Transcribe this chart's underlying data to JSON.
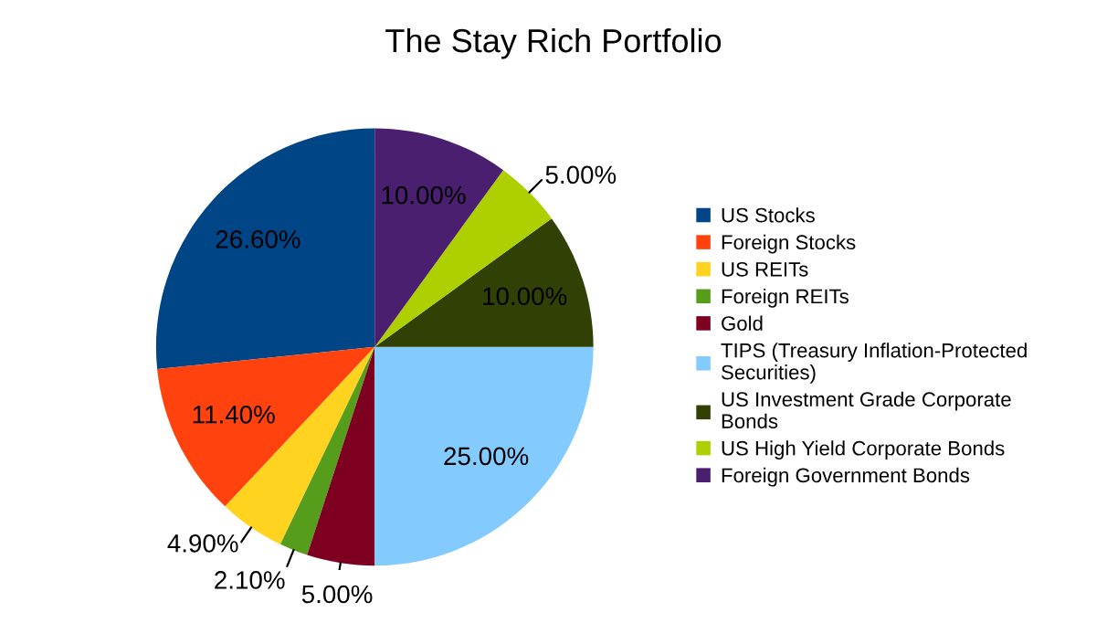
{
  "chart_data": {
    "type": "pie",
    "title": "The Stay Rich Portfolio",
    "categories": [
      "US Stocks",
      "Foreign Stocks",
      "US REITs",
      "Foreign REITs",
      "Gold",
      "TIPS (Treasury Inflation-Protected\nSecurities)",
      "US Investment Grade Corporate\nBonds",
      "US High Yield Corporate Bonds",
      "Foreign Government Bonds"
    ],
    "values": [
      26.6,
      11.4,
      4.9,
      2.1,
      5.0,
      25.0,
      10.0,
      5.0,
      10.0
    ],
    "value_labels": [
      "26.60%",
      "11.40%",
      "4.90%",
      "2.10%",
      "5.00%",
      "25.00%",
      "10.00%",
      "5.00%",
      "10.00%"
    ],
    "colors": [
      "#004586",
      "#ff420e",
      "#ffd320",
      "#579d1c",
      "#7e0021",
      "#83caff",
      "#314004",
      "#aecf00",
      "#4b1f6f"
    ],
    "legend": "right"
  }
}
